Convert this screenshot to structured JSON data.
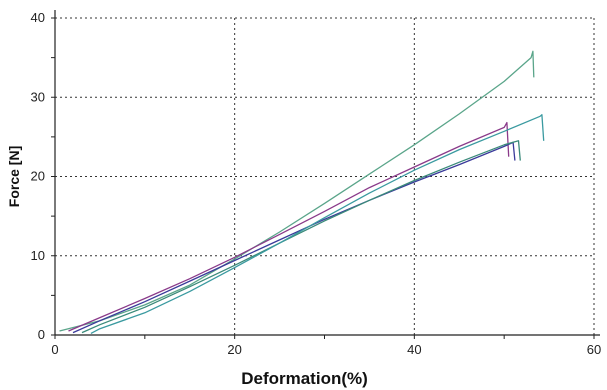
{
  "chart_data": {
    "type": "line",
    "title": "",
    "xlabel": "Deformation(%)",
    "ylabel": "Force [N]",
    "xlim": [
      0,
      60
    ],
    "ylim": [
      0,
      40
    ],
    "x_ticks": [
      0,
      20,
      40,
      60
    ],
    "y_ticks": [
      0,
      10,
      20,
      30,
      40
    ],
    "x_tick_labels": [
      "0",
      "20",
      "40",
      "60"
    ],
    "y_tick_labels": [
      "0",
      "10",
      "20",
      "30",
      "40"
    ],
    "grid": true,
    "legend": "none",
    "series": [
      {
        "color": "#5aa58a",
        "points": [
          [
            0.5,
            0.5
          ],
          [
            5,
            1.8
          ],
          [
            10,
            3.8
          ],
          [
            15,
            6.3
          ],
          [
            20,
            9.6
          ],
          [
            25,
            13.0
          ],
          [
            30,
            16.6
          ],
          [
            35,
            20.3
          ],
          [
            40,
            24.0
          ],
          [
            45,
            27.9
          ],
          [
            50,
            32.0
          ],
          [
            53,
            35.0
          ],
          [
            53.2,
            35.8
          ],
          [
            53.3,
            32.5
          ]
        ]
      },
      {
        "color": "#8a3a8a",
        "points": [
          [
            1.5,
            0.5
          ],
          [
            5,
            2.2
          ],
          [
            10,
            4.6
          ],
          [
            15,
            7.1
          ],
          [
            20,
            9.8
          ],
          [
            25,
            12.7
          ],
          [
            30,
            15.6
          ],
          [
            35,
            18.6
          ],
          [
            40,
            21.2
          ],
          [
            45,
            23.8
          ],
          [
            50,
            26.2
          ],
          [
            50.3,
            26.8
          ],
          [
            50.5,
            22.5
          ]
        ]
      },
      {
        "color": "#3a3a9a",
        "points": [
          [
            2,
            0.3
          ],
          [
            5,
            1.8
          ],
          [
            10,
            4.2
          ],
          [
            15,
            6.8
          ],
          [
            20,
            9.4
          ],
          [
            25,
            12.0
          ],
          [
            30,
            14.6
          ],
          [
            35,
            17.0
          ],
          [
            40,
            19.3
          ],
          [
            45,
            21.5
          ],
          [
            50,
            23.8
          ],
          [
            51,
            24.3
          ],
          [
            51.2,
            22.0
          ]
        ]
      },
      {
        "color": "#3a8a7a",
        "points": [
          [
            3,
            0.3
          ],
          [
            5,
            1.3
          ],
          [
            10,
            3.5
          ],
          [
            15,
            6.1
          ],
          [
            20,
            8.8
          ],
          [
            25,
            11.6
          ],
          [
            30,
            14.4
          ],
          [
            35,
            17.0
          ],
          [
            40,
            19.5
          ],
          [
            45,
            21.8
          ],
          [
            50,
            24.0
          ],
          [
            51.6,
            24.5
          ],
          [
            51.8,
            22.0
          ]
        ]
      },
      {
        "color": "#3a9aa0",
        "points": [
          [
            4,
            0.2
          ],
          [
            5,
            0.8
          ],
          [
            10,
            2.8
          ],
          [
            15,
            5.5
          ],
          [
            20,
            8.5
          ],
          [
            25,
            11.6
          ],
          [
            30,
            14.8
          ],
          [
            35,
            17.9
          ],
          [
            40,
            20.8
          ],
          [
            45,
            23.4
          ],
          [
            50,
            25.7
          ],
          [
            54,
            27.6
          ],
          [
            54.2,
            27.8
          ],
          [
            54.4,
            24.5
          ]
        ]
      }
    ]
  }
}
